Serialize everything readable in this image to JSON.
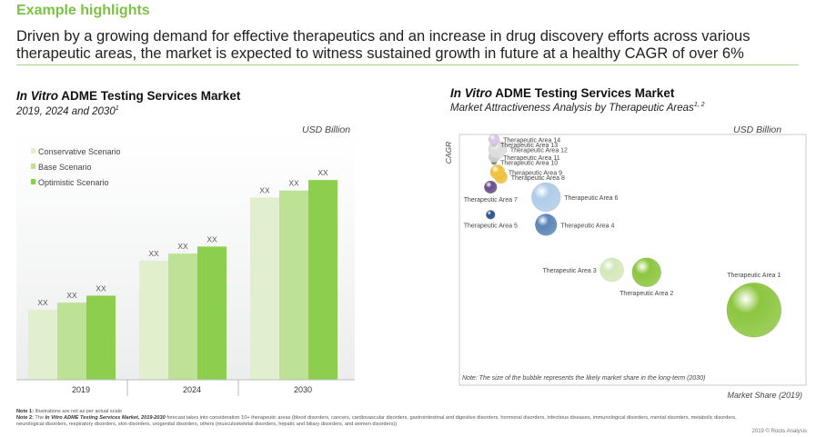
{
  "header": {
    "title": "Example highlights",
    "headline": "Driven by a growing demand for effective therapeutics and an increase in drug discovery efforts across various therapeutic areas, the market is expected to witness sustained growth in future at a healthy CAGR of over 6%"
  },
  "left_chart": {
    "title_italic": "In Vitro",
    "title_rest": " ADME Testing Services Market",
    "subtitle": "2019, 2024 and 2030",
    "subtitle_sup": "1",
    "unit": "USD Billion"
  },
  "right_chart": {
    "title_italic": "In Vitro",
    "title_rest": " ADME Testing Services Market",
    "subtitle": "Market Attractiveness Analysis by Therapeutic Areas",
    "subtitle_sup": "1, 2",
    "unit": "USD Billion"
  },
  "chart_data": [
    {
      "type": "bar",
      "title": "In Vitro ADME Testing Services Market 2019, 2024 and 2030",
      "ylabel": "USD Billion",
      "categories": [
        "2019",
        "2024",
        "2030"
      ],
      "series": [
        {
          "name": "Conservative Scenario",
          "color": "#e1efcf",
          "values": [
            1.0,
            1.7,
            2.6
          ]
        },
        {
          "name": "Base Scenario",
          "color": "#bde296",
          "values": [
            1.1,
            1.8,
            2.7
          ]
        },
        {
          "name": "Optimistic Scenario",
          "color": "#8ccf4f",
          "values": [
            1.2,
            1.9,
            2.85
          ]
        }
      ],
      "data_label": "XX",
      "ylim": [
        0,
        3.5
      ],
      "legend": "top-left"
    },
    {
      "type": "scatter",
      "title": "In Vitro ADME Testing Services Market - Market Attractiveness Analysis by Therapeutic Areas",
      "xlabel": "Market Share (2019)",
      "ylabel": "CAGR",
      "unit": "USD Billion",
      "note": "Note: The size of the bubble represents the likely market share in the long-term (2030)",
      "xlim": [
        0,
        100
      ],
      "ylim": [
        0,
        100
      ],
      "points": [
        {
          "label": "Therapeutic Area 1",
          "x": 85,
          "y": 30,
          "r": 30,
          "color": "#8cc63f",
          "label_pos": "above"
        },
        {
          "label": "Therapeutic Area 2",
          "x": 54,
          "y": 45,
          "r": 16,
          "color": "#8cc63f",
          "label_pos": "below"
        },
        {
          "label": "Therapeutic Area 3",
          "x": 44,
          "y": 46,
          "r": 13,
          "color": "#d4e8b8",
          "label_pos": "left"
        },
        {
          "label": "Therapeutic Area 4",
          "x": 25,
          "y": 64,
          "r": 12,
          "color": "#5a86b8",
          "label_pos": "right"
        },
        {
          "label": "Therapeutic Area 5",
          "x": 9,
          "y": 68,
          "r": 5,
          "color": "#27508c",
          "label_pos": "below"
        },
        {
          "label": "Therapeutic Area 6",
          "x": 25,
          "y": 75,
          "r": 16,
          "color": "#b0cce8",
          "label_pos": "right"
        },
        {
          "label": "Therapeutic Area 7",
          "x": 9,
          "y": 79,
          "r": 7,
          "color": "#6a4c8c",
          "label_pos": "below"
        },
        {
          "label": "Therapeutic Area 8",
          "x": 12,
          "y": 83,
          "r": 7,
          "color": "#f2c23c",
          "label_pos": "right"
        },
        {
          "label": "Therapeutic Area 9",
          "x": 11,
          "y": 85,
          "r": 8,
          "color": "#f2c23c",
          "label_pos": "right"
        },
        {
          "label": "Therapeutic Area 10",
          "x": 10,
          "y": 89,
          "r": 3,
          "color": "#777777",
          "label_pos": "right"
        },
        {
          "label": "Therapeutic Area 11",
          "x": 10,
          "y": 91,
          "r": 6,
          "color": "#cccccc",
          "label_pos": "right"
        },
        {
          "label": "Therapeutic Area 12",
          "x": 11,
          "y": 94,
          "r": 10,
          "color": "#dddddd",
          "label_pos": "right"
        },
        {
          "label": "Therapeutic Area 13",
          "x": 10,
          "y": 96,
          "r": 3,
          "color": "#cccccc",
          "label_pos": "right"
        },
        {
          "label": "Therapeutic Area 14",
          "x": 10,
          "y": 98,
          "r": 6,
          "color": "#d8c6e6",
          "label_pos": "right"
        }
      ]
    }
  ],
  "notes": {
    "note1_label": "Note 1:",
    "note1_text": " Illustrations are not as per actual scale",
    "note2_label": "Note 2:",
    "note2_pre": " The ",
    "note2_bold": "In Vitro ADME Testing Services Market, 2019-2030",
    "note2_text": " forecast takes into consideration 10+ therapeutic areas (blood disorders, cancers, cardiovascular disorders, gastrointestinal and digestive disorders, hormonal disorders, infectious diseases, immunological disorders, mental disorders, metabolic disorders, neurological disorders, respiratory disorders, skin disorders, urogenital disorders, others (musculoskeletal disorders, hepatic and biliary disorders, and women disorders))",
    "copyright": "2019 © Roots Analysis"
  }
}
